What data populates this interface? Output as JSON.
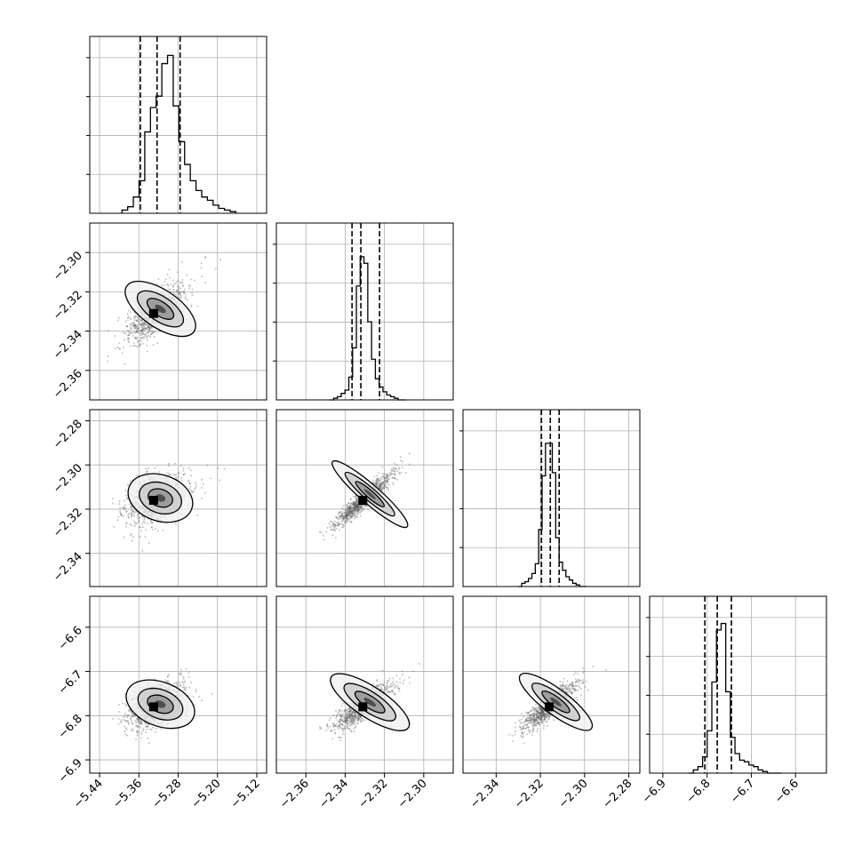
{
  "chart_data": {
    "type": "corner",
    "grid": true,
    "n_params": 4,
    "params": [
      {
        "range": [
          -5.46,
          -5.1
        ],
        "ticks": [
          -5.44,
          -5.36,
          -5.28,
          -5.2,
          -5.12
        ],
        "tick_labels": [
          "−5.44",
          "−5.36",
          "−5.28",
          "−5.20",
          "−5.12"
        ],
        "quantiles": [
          -5.357,
          -5.323,
          -5.276
        ],
        "mode": -5.33,
        "spread": 0.023,
        "skew_right": 2.6
      },
      {
        "range": [
          -2.375,
          -2.285
        ],
        "ticks": [
          -2.36,
          -2.34,
          -2.32,
          -2.3
        ],
        "tick_labels": [
          "−2.36",
          "−2.34",
          "−2.32",
          "−2.30"
        ],
        "quantiles": [
          -2.3365,
          -2.332,
          -2.3225
        ],
        "mode": -2.331,
        "spread": 0.006,
        "skew_right": 1.3
      },
      {
        "range": [
          -2.355,
          -2.275
        ],
        "ticks": [
          -2.34,
          -2.32,
          -2.3,
          -2.28
        ],
        "tick_labels": [
          "−2.34",
          "−2.32",
          "−2.30",
          "−2.28"
        ],
        "quantiles": [
          -2.3195,
          -2.3155,
          -2.3115
        ],
        "mode": -2.316,
        "spread": 0.005,
        "skew_right": 1.2
      },
      {
        "range": [
          -6.93,
          -6.53
        ],
        "ticks": [
          -6.9,
          -6.8,
          -6.7,
          -6.6
        ],
        "tick_labels": [
          "−6.9",
          "−6.8",
          "−6.7",
          "−6.6"
        ],
        "quantiles": [
          -6.805,
          -6.777,
          -6.745
        ],
        "mode": -6.78,
        "spread": 0.022,
        "skew_right": 2.4
      }
    ],
    "hist_heights": [
      [
        0.02,
        0.04,
        0.1,
        0.2,
        0.5,
        0.65,
        0.72,
        0.92,
        0.97,
        0.66,
        0.44,
        0.3,
        0.2,
        0.14,
        0.1,
        0.08,
        0.05,
        0.03,
        0.02,
        0.01
      ],
      [
        0.0,
        0.01,
        0.02,
        0.04,
        0.06,
        0.14,
        0.32,
        0.7,
        0.88,
        0.84,
        0.48,
        0.25,
        0.13,
        0.08,
        0.05,
        0.03,
        0.02,
        0.01,
        0.0,
        0.0
      ],
      [
        0.0,
        0.02,
        0.03,
        0.05,
        0.08,
        0.14,
        0.35,
        0.68,
        0.88,
        0.88,
        0.7,
        0.3,
        0.15,
        0.1,
        0.06,
        0.04,
        0.02,
        0.01,
        0.0,
        0.0
      ],
      [
        0.0,
        0.02,
        0.04,
        0.1,
        0.26,
        0.56,
        0.88,
        0.92,
        0.5,
        0.22,
        0.12,
        0.08,
        0.07,
        0.05,
        0.04,
        0.02,
        0.01,
        0.0,
        0.0,
        0.0
      ]
    ],
    "correlations": [
      [
        1,
        0.65,
        0.35,
        0.45
      ],
      [
        0.65,
        1,
        0.93,
        0.8
      ],
      [
        0.35,
        0.93,
        1,
        0.85
      ],
      [
        0.45,
        0.8,
        0.85,
        1
      ]
    ]
  }
}
